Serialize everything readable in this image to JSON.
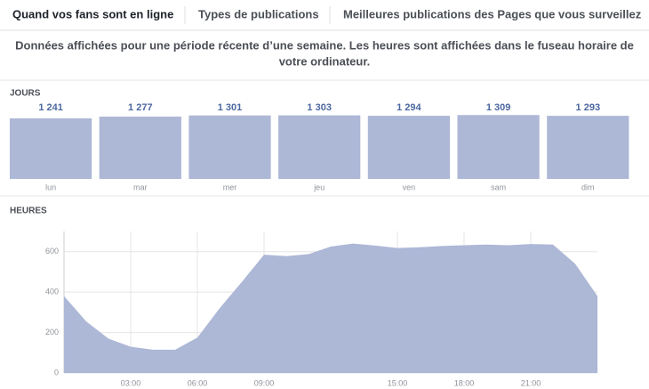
{
  "tabs": [
    "Quand vos fans sont en ligne",
    "Types de publications",
    "Meilleures publications des Pages que vous surveillez"
  ],
  "description": [
    "Données affichées pour une période récente d’une semaine. Les heures sont affichées dans le fuseau horaire de",
    "votre ordinateur."
  ],
  "chart_data": [
    {
      "type": "bar",
      "title": "JOURS",
      "categories": [
        "lun",
        "mar",
        "mer",
        "jeu",
        "ven",
        "sam",
        "dim"
      ],
      "values": [
        1241,
        1277,
        1301,
        1303,
        1294,
        1309,
        1293
      ],
      "value_labels": [
        "1 241",
        "1 277",
        "1 301",
        "1 303",
        "1 294",
        "1 309",
        "1 293"
      ],
      "color": "#adb7d6",
      "ylim": [
        0,
        1350
      ]
    },
    {
      "type": "area",
      "title": "HEURES",
      "x": [
        0,
        1,
        2,
        3,
        4,
        5,
        6,
        7,
        8,
        9,
        10,
        11,
        12,
        13,
        14,
        15,
        16,
        17,
        18,
        19,
        20,
        21,
        22,
        23,
        24
      ],
      "values": [
        380,
        255,
        170,
        130,
        115,
        115,
        175,
        320,
        450,
        585,
        578,
        588,
        625,
        640,
        630,
        618,
        622,
        628,
        632,
        635,
        632,
        638,
        635,
        540,
        380
      ],
      "color": "#adb7d6",
      "xlim": [
        0,
        24
      ],
      "xticks": [
        {
          "value": 3,
          "label": "03:00"
        },
        {
          "value": 6,
          "label": "06:00"
        },
        {
          "value": 9,
          "label": "09:00"
        },
        {
          "value": 15,
          "label": "15:00"
        },
        {
          "value": 18,
          "label": "18:00"
        },
        {
          "value": 21,
          "label": "21:00"
        }
      ],
      "ylim": [
        0,
        700
      ],
      "yticks": [
        0,
        200,
        400,
        600
      ],
      "grid": true
    }
  ]
}
